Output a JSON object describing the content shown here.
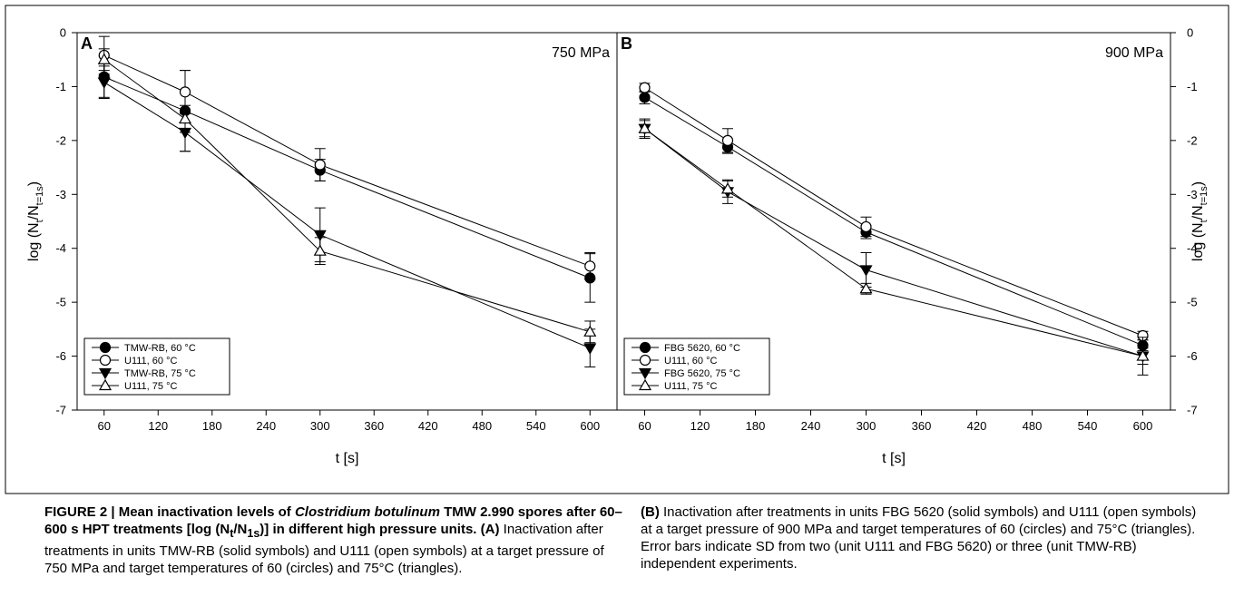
{
  "figure": {
    "caption_left": {
      "label": "FIGURE 2 | ",
      "bold_a": "Mean inactivation levels of ",
      "species": "Clostridium botulinum",
      "bold_b": " TMW 2.990 spores after 60–600 s HPT treatments [log (N",
      "sub_t": "t",
      "bold_c": "/N",
      "sub_1s": "1s",
      "bold_d": ")] in different high pressure units.",
      "panel_a": " (A)",
      "text_a": " Inactivation after treatments in units TMW-RB (solid symbols) and U111 (open symbols) at a target pressure of 750 MPa and target temperatures of 60 (circles) and 75°C (triangles)."
    },
    "caption_right": {
      "panel_b": "(B)",
      "text_b": " Inactivation after treatments in units FBG 5620 (solid symbols) and U111 (open symbols) at a target pressure of 900 MPa and target temperatures of 60 (circles) and 75°C (triangles). Error bars indicate SD from two (unit U111 and FBG 5620) or three (unit TMW-RB) independent experiments."
    }
  },
  "chart_data": [
    {
      "type": "line",
      "panel": "A",
      "annotation": "750 MPa",
      "xlabel": "t [s]",
      "ylabel": "log (N",
      "ylabel_sub_t": "t",
      "ylabel_mid": "/N",
      "ylabel_sub_1s": "t=1s",
      "ylabel_end": ")",
      "xlim": [
        30,
        630
      ],
      "ylim": [
        -7,
        0
      ],
      "xticks": [
        60,
        120,
        180,
        240,
        300,
        360,
        420,
        480,
        540,
        600
      ],
      "yticks": [
        0,
        -1,
        -2,
        -3,
        -4,
        -5,
        -6,
        -7
      ],
      "ytick_labels": [
        "0",
        "-1",
        "-2",
        "-3",
        "-4",
        "-5",
        "-6",
        "-7"
      ],
      "legend_position": "bottom-left",
      "series": [
        {
          "name": "TMW-RB, 60 °C",
          "marker": "circle",
          "fill": "solid",
          "x": [
            60,
            150,
            300,
            600
          ],
          "y": [
            -0.82,
            -1.45,
            -2.55,
            -4.55
          ],
          "err": [
            0.38,
            0.75,
            0.2,
            0.45
          ]
        },
        {
          "name": "U111, 60 °C",
          "marker": "circle",
          "fill": "open",
          "x": [
            60,
            150,
            300,
            600
          ],
          "y": [
            -0.42,
            -1.1,
            -2.45,
            -4.33
          ],
          "err": [
            0.35,
            0.4,
            0.3,
            0.25
          ]
        },
        {
          "name": "TMW-RB, 75 °C",
          "marker": "triangle-down",
          "fill": "solid",
          "x": [
            60,
            150,
            300,
            600
          ],
          "y": [
            -0.92,
            -1.85,
            -3.75,
            -5.85
          ],
          "err": [
            0.3,
            0.35,
            0.5,
            0.35
          ]
        },
        {
          "name": "U111, 75 °C",
          "marker": "triangle-up",
          "fill": "open",
          "x": [
            60,
            150,
            300,
            600
          ],
          "y": [
            -0.5,
            -1.6,
            -4.05,
            -5.55
          ],
          "err": [
            0.2,
            0.25,
            0.25,
            0.2
          ]
        }
      ]
    },
    {
      "type": "line",
      "panel": "B",
      "annotation": "900 MPa",
      "xlabel": "t [s]",
      "ylabel": "log (N",
      "ylabel_sub_t": "t",
      "ylabel_mid": "/N",
      "ylabel_sub_1s": "t=1s",
      "ylabel_end": ")",
      "xlim": [
        30,
        630
      ],
      "ylim": [
        -7,
        0
      ],
      "xticks": [
        60,
        120,
        180,
        240,
        300,
        360,
        420,
        480,
        540,
        600
      ],
      "yticks": [
        0,
        -1,
        -2,
        -3,
        -4,
        -5,
        -6,
        -7
      ],
      "ytick_labels": [
        "0",
        "-1",
        "-2",
        "-3",
        "-4",
        "-5",
        "-6",
        "-7"
      ],
      "legend_position": "bottom-left",
      "series": [
        {
          "name": "FBG 5620, 60 °C",
          "marker": "circle",
          "fill": "solid",
          "x": [
            60,
            150,
            300,
            600
          ],
          "y": [
            -1.2,
            -2.12,
            -3.7,
            -5.8
          ],
          "err": [
            0.12,
            0.12,
            0.12,
            0.1
          ]
        },
        {
          "name": "U111, 60 °C",
          "marker": "circle",
          "fill": "open",
          "x": [
            60,
            150,
            300,
            600
          ],
          "y": [
            -1.02,
            -2.0,
            -3.6,
            -5.62
          ],
          "err": [
            0.08,
            0.22,
            0.18,
            0.08
          ]
        },
        {
          "name": "FBG 5620, 75 °C",
          "marker": "triangle-down",
          "fill": "solid",
          "x": [
            60,
            150,
            300,
            600
          ],
          "y": [
            -1.78,
            -2.95,
            -4.4,
            -6.0
          ],
          "err": [
            0.18,
            0.22,
            0.32,
            0.15
          ]
        },
        {
          "name": "U111, 75 °C",
          "marker": "triangle-up",
          "fill": "open",
          "x": [
            60,
            150,
            300,
            600
          ],
          "y": [
            -1.78,
            -2.9,
            -4.75,
            -6.0
          ],
          "err": [
            0.15,
            0.15,
            0.1,
            0.35
          ]
        }
      ]
    }
  ]
}
